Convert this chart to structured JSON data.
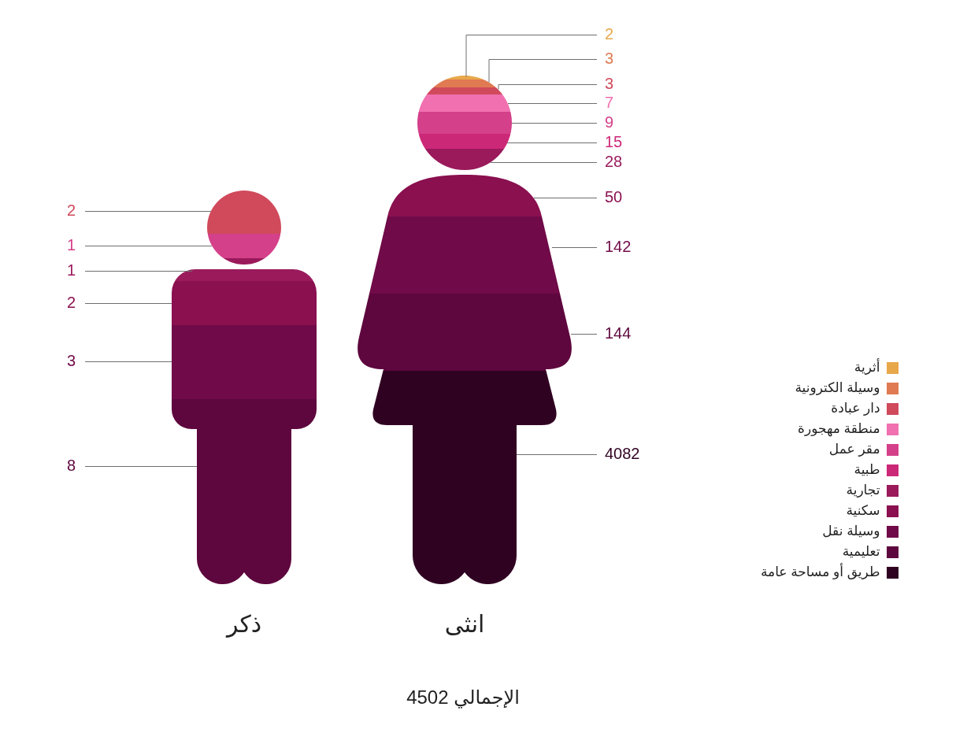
{
  "chart_data": {
    "type": "other",
    "categories": [
      "ذكر",
      "انثى"
    ],
    "series": [
      {
        "name": "طريق أو مساحة عامة",
        "color": "#300222",
        "values": [
          null,
          4082
        ]
      },
      {
        "name": "تعليمية",
        "color": "#5e063e",
        "values": [
          8,
          144
        ]
      },
      {
        "name": "وسيلة نقل",
        "color": "#700a48",
        "values": [
          3,
          142
        ]
      },
      {
        "name": "سكنية",
        "color": "#8a1050",
        "values": [
          2,
          50
        ]
      },
      {
        "name": "تجارية",
        "color": "#9a1a5c",
        "values": [
          1,
          28
        ]
      },
      {
        "name": "طبية",
        "color": "#cc2878",
        "values": [
          null,
          15
        ]
      },
      {
        "name": "مقر عمل",
        "color": "#d4408a",
        "values": [
          1,
          9
        ]
      },
      {
        "name": "منطقة مهجورة",
        "color": "#f070b0",
        "values": [
          null,
          7
        ]
      },
      {
        "name": "دار عبادة",
        "color": "#d04a5c",
        "values": [
          2,
          3
        ]
      },
      {
        "name": "وسيلة الكترونية",
        "color": "#e07a52",
        "values": [
          null,
          3
        ]
      },
      {
        "name": "أثرية",
        "color": "#e8a84a",
        "values": [
          null,
          2
        ]
      }
    ],
    "data_labels": true,
    "legend": "right",
    "annotations": [
      "الإجمالي 4502"
    ]
  }
}
